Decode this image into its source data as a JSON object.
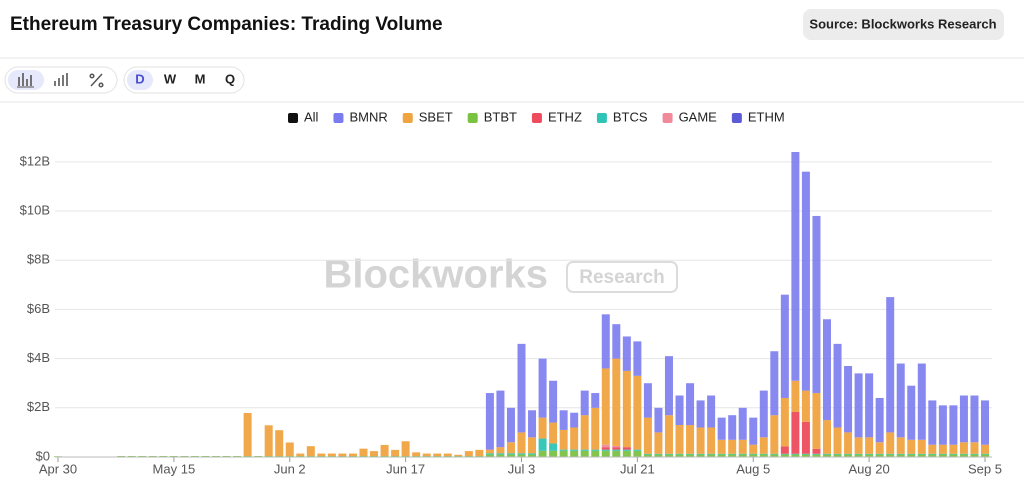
{
  "header": {
    "title": "Ethereum Treasury Companies: Trading Volume",
    "source": "Source: Blockworks Research"
  },
  "toolbar": {
    "periods": [
      "D",
      "W",
      "M",
      "Q"
    ]
  },
  "legend_all": "All",
  "watermark": {
    "brand": "Blockworks",
    "badge": "Research"
  },
  "chart_data": {
    "type": "bar",
    "stacked": true,
    "categories": [
      "Apr 30",
      null,
      null,
      null,
      null,
      null,
      null,
      null,
      null,
      null,
      null,
      "May 15",
      null,
      null,
      null,
      null,
      null,
      null,
      null,
      null,
      null,
      null,
      "Jun 2",
      null,
      null,
      null,
      null,
      null,
      null,
      null,
      null,
      null,
      null,
      "Jun 17",
      null,
      null,
      null,
      null,
      null,
      null,
      null,
      null,
      null,
      null,
      "Jul 3",
      null,
      null,
      null,
      null,
      null,
      null,
      null,
      null,
      null,
      null,
      "Jul 21",
      null,
      null,
      null,
      null,
      null,
      null,
      null,
      null,
      null,
      null,
      "Aug 5",
      null,
      null,
      null,
      null,
      null,
      null,
      null,
      null,
      null,
      null,
      "Aug 20",
      null,
      null,
      null,
      null,
      null,
      null,
      null,
      null,
      null,
      null,
      "Sep 5"
    ],
    "ylim": [
      0,
      12.4
    ],
    "yticks": [
      {
        "value": 0,
        "label": "$0"
      },
      {
        "value": 2,
        "label": "$2B"
      },
      {
        "value": 4,
        "label": "$4B"
      },
      {
        "value": 6,
        "label": "$6B"
      },
      {
        "value": 8,
        "label": "$8B"
      },
      {
        "value": 10,
        "label": "$10B"
      },
      {
        "value": 12,
        "label": "$12B"
      }
    ],
    "grid": true,
    "series": [
      {
        "name": "BMNR",
        "color": "#7b7bf0",
        "values": [
          0,
          0,
          0,
          0,
          0,
          0,
          0,
          0,
          0,
          0,
          0,
          0,
          0,
          0,
          0,
          0,
          0,
          0,
          0,
          0,
          0,
          0,
          0,
          0,
          0,
          0,
          0,
          0,
          0,
          0,
          0,
          0,
          0,
          0,
          0,
          0,
          0,
          0,
          0,
          0,
          0,
          2.3,
          2.3,
          1.4,
          3.6,
          1.1,
          2.4,
          1.7,
          0.8,
          0.6,
          1.0,
          0.6,
          2.2,
          1.4,
          1.4,
          1.4,
          1.4,
          1.0,
          2.4,
          1.2,
          1.7,
          1.1,
          1.3,
          0.9,
          1.0,
          1.3,
          1.1,
          1.9,
          2.6,
          4.2,
          9.3,
          8.9,
          7.2,
          4.1,
          3.4,
          2.7,
          2.6,
          2.6,
          1.8,
          5.5,
          3.0,
          2.2,
          3.1,
          1.8,
          1.6,
          1.6,
          1.9,
          1.9,
          1.8
        ]
      },
      {
        "name": "SBET",
        "color": "#f0a341",
        "values": [
          0,
          0,
          0,
          0,
          0,
          0,
          0,
          0,
          0,
          0,
          0,
          0,
          0,
          0,
          0,
          0,
          0,
          0,
          1.75,
          0,
          1.25,
          1.05,
          0.55,
          0.1,
          0.4,
          0.1,
          0.1,
          0.1,
          0.1,
          0.3,
          0.2,
          0.45,
          0.25,
          0.6,
          0.15,
          0.1,
          0.1,
          0.1,
          0.05,
          0.2,
          0.25,
          0.15,
          0.25,
          0.45,
          0.85,
          0.65,
          0.85,
          0.85,
          0.8,
          0.9,
          1.4,
          1.7,
          3.1,
          3.55,
          3.1,
          3.0,
          1.47,
          0.87,
          1.57,
          1.17,
          1.17,
          1.07,
          1.07,
          0.57,
          0.57,
          0.57,
          0.37,
          0.67,
          1.57,
          1.97,
          1.27,
          1.27,
          2.27,
          1.37,
          1.07,
          0.87,
          0.67,
          0.67,
          0.47,
          0.87,
          0.67,
          0.57,
          0.57,
          0.37,
          0.37,
          0.37,
          0.47,
          0.47,
          0.37
        ]
      },
      {
        "name": "BTBT",
        "color": "#7cc242",
        "values": [
          0.03,
          0,
          0,
          0,
          0,
          0,
          0.04,
          0.04,
          0.04,
          0.04,
          0.04,
          0.04,
          0.04,
          0.04,
          0.04,
          0.04,
          0.04,
          0.04,
          0.04,
          0.04,
          0.04,
          0.04,
          0.04,
          0.04,
          0.04,
          0.04,
          0.04,
          0.04,
          0.04,
          0.04,
          0.04,
          0.04,
          0.04,
          0.04,
          0.04,
          0.04,
          0.04,
          0.04,
          0.04,
          0.04,
          0.04,
          0.1,
          0.1,
          0.1,
          0.1,
          0.1,
          0.25,
          0.25,
          0.25,
          0.25,
          0.25,
          0.25,
          0.25,
          0.25,
          0.25,
          0.25,
          0.1,
          0.1,
          0.1,
          0.1,
          0.1,
          0.1,
          0.1,
          0.1,
          0.1,
          0.1,
          0.1,
          0.1,
          0.1,
          0.1,
          0.1,
          0.1,
          0.1,
          0.1,
          0.1,
          0.1,
          0.1,
          0.1,
          0.1,
          0.1,
          0.1,
          0.1,
          0.1,
          0.1,
          0.1,
          0.1,
          0.1,
          0.1,
          0.1
        ]
      },
      {
        "name": "ETHZ",
        "color": "#ee4b5c",
        "values": [
          0,
          0,
          0,
          0,
          0,
          0,
          0,
          0,
          0,
          0,
          0,
          0,
          0,
          0,
          0,
          0,
          0,
          0,
          0,
          0,
          0,
          0,
          0,
          0,
          0,
          0,
          0,
          0,
          0,
          0,
          0,
          0,
          0,
          0,
          0,
          0,
          0,
          0,
          0,
          0,
          0,
          0,
          0,
          0,
          0,
          0,
          0,
          0,
          0,
          0,
          0,
          0,
          0.1,
          0.1,
          0.1,
          0,
          0,
          0,
          0,
          0,
          0,
          0,
          0,
          0,
          0,
          0,
          0,
          0,
          0,
          0.3,
          1.7,
          1.3,
          0.2,
          0,
          0,
          0,
          0,
          0,
          0,
          0,
          0,
          0,
          0,
          0,
          0,
          0,
          0,
          0,
          0
        ]
      },
      {
        "name": "BTCS",
        "color": "#2ec4b6",
        "values": [
          0,
          0,
          0,
          0,
          0,
          0,
          0,
          0,
          0,
          0,
          0,
          0,
          0,
          0,
          0,
          0,
          0,
          0,
          0,
          0,
          0,
          0,
          0,
          0,
          0,
          0,
          0,
          0,
          0,
          0,
          0,
          0,
          0,
          0,
          0,
          0,
          0,
          0,
          0,
          0,
          0,
          0.05,
          0.05,
          0.05,
          0.05,
          0.05,
          0.5,
          0.3,
          0.05,
          0.05,
          0.05,
          0.05,
          0.05,
          0.05,
          0.05,
          0.05,
          0.03,
          0.03,
          0.03,
          0.03,
          0.03,
          0.03,
          0.03,
          0.03,
          0.03,
          0.03,
          0.03,
          0.03,
          0.03,
          0.03,
          0.03,
          0.03,
          0.03,
          0.03,
          0.03,
          0.03,
          0.03,
          0.03,
          0.03,
          0.03,
          0.03,
          0.03,
          0.03,
          0.03,
          0.03,
          0.03,
          0.03,
          0.03,
          0.03
        ]
      },
      {
        "name": "GAME",
        "color": "#f08a9a",
        "values": [
          0,
          0,
          0,
          0,
          0,
          0,
          0,
          0,
          0,
          0,
          0,
          0,
          0,
          0,
          0,
          0,
          0,
          0,
          0,
          0,
          0,
          0,
          0,
          0,
          0,
          0,
          0,
          0,
          0,
          0,
          0,
          0,
          0,
          0,
          0,
          0,
          0,
          0,
          0,
          0,
          0,
          0,
          0,
          0,
          0,
          0,
          0,
          0,
          0,
          0,
          0,
          0,
          0.1,
          0.05,
          0,
          0,
          0,
          0,
          0,
          0,
          0,
          0,
          0,
          0,
          0,
          0,
          0,
          0,
          0,
          0,
          0,
          0,
          0,
          0,
          0,
          0,
          0,
          0,
          0,
          0,
          0,
          0,
          0,
          0,
          0,
          0,
          0,
          0,
          0
        ]
      },
      {
        "name": "ETHM",
        "color": "#5b5bd6",
        "values": [
          0,
          0,
          0,
          0,
          0,
          0,
          0,
          0,
          0,
          0,
          0,
          0,
          0,
          0,
          0,
          0,
          0,
          0,
          0,
          0,
          0,
          0,
          0,
          0,
          0,
          0,
          0,
          0,
          0,
          0,
          0,
          0,
          0,
          0,
          0,
          0,
          0,
          0,
          0,
          0,
          0,
          0,
          0,
          0,
          0,
          0,
          0,
          0,
          0,
          0,
          0,
          0,
          0,
          0,
          0,
          0,
          0,
          0,
          0,
          0,
          0,
          0,
          0,
          0,
          0,
          0,
          0,
          0,
          0,
          0,
          0,
          0,
          0,
          0,
          0,
          0,
          0,
          0,
          0,
          0,
          0,
          0,
          0,
          0,
          0,
          0,
          0,
          0,
          0
        ]
      }
    ]
  }
}
